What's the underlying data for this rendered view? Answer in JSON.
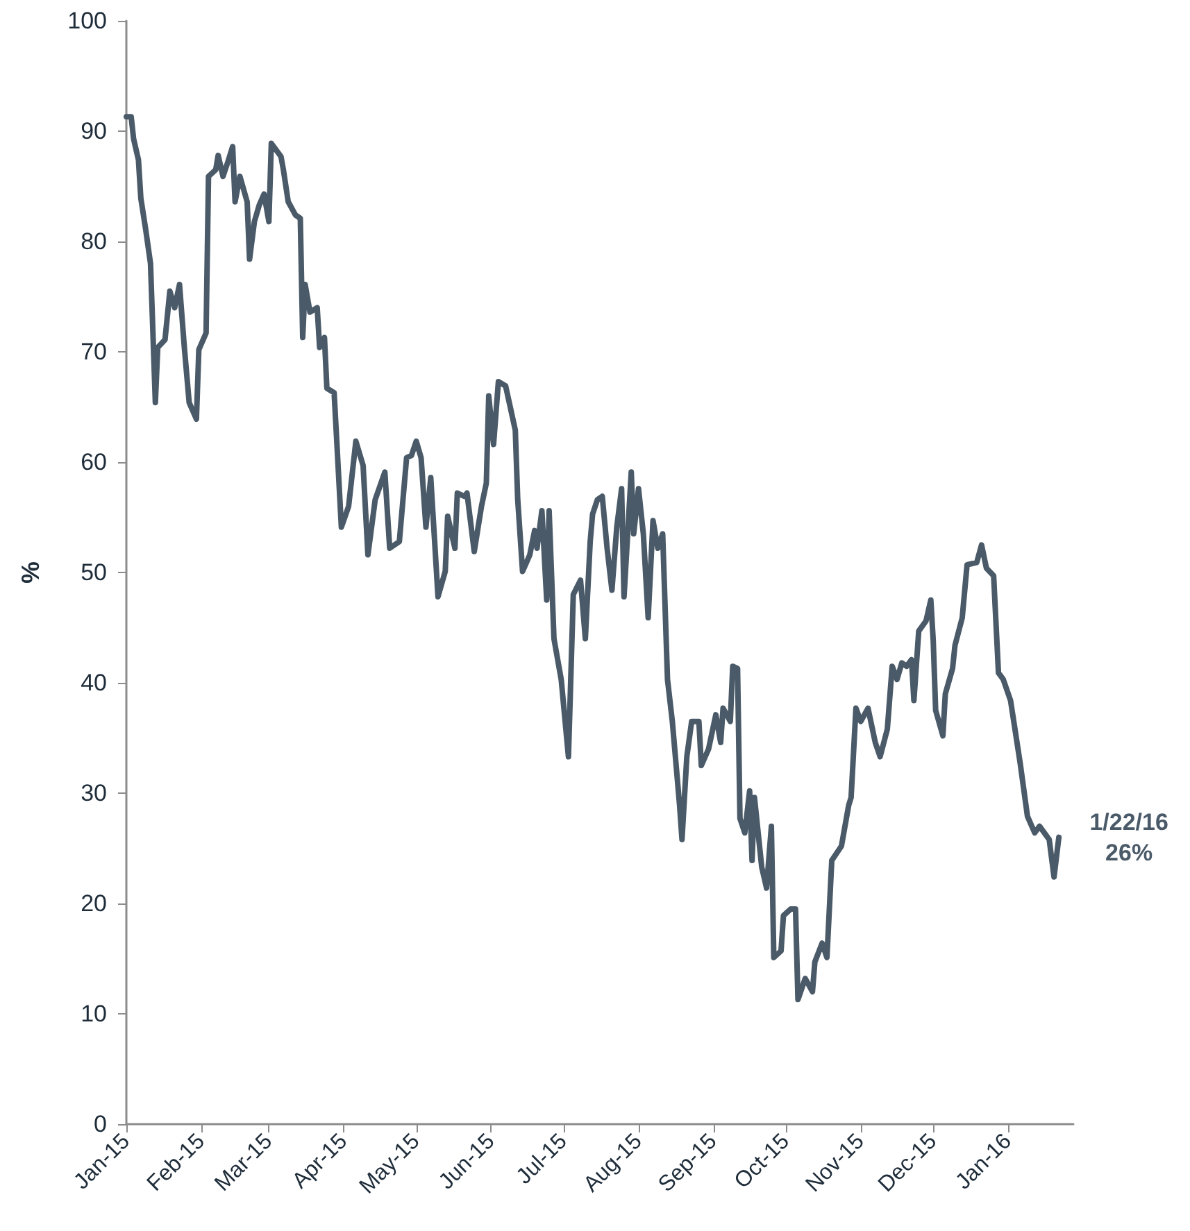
{
  "chart_data": {
    "type": "line",
    "ylabel": "%",
    "color": "#4a5a68",
    "line_style": "solid",
    "marker": "none",
    "xlim": [
      "2015-01-01",
      "2016-01-28"
    ],
    "ylim": [
      0,
      100
    ],
    "yticks": [
      0,
      10,
      20,
      30,
      40,
      50,
      60,
      70,
      80,
      90,
      100
    ],
    "xticks": [
      {
        "value": "2015-01-01",
        "label": "Jan-15"
      },
      {
        "value": "2015-02-01",
        "label": "Feb-15"
      },
      {
        "value": "2015-03-01",
        "label": "Mar-15"
      },
      {
        "value": "2015-04-01",
        "label": "Apr-15"
      },
      {
        "value": "2015-05-01",
        "label": "May-15"
      },
      {
        "value": "2015-06-01",
        "label": "Jun-15"
      },
      {
        "value": "2015-07-01",
        "label": "Jul-15"
      },
      {
        "value": "2015-08-01",
        "label": "Aug-15"
      },
      {
        "value": "2015-09-01",
        "label": "Sep-15"
      },
      {
        "value": "2015-10-01",
        "label": "Oct-15"
      },
      {
        "value": "2015-11-01",
        "label": "Nov-15"
      },
      {
        "value": "2015-12-01",
        "label": "Dec-15"
      },
      {
        "value": "2016-01-01",
        "label": "Jan-16"
      }
    ],
    "x": [
      "2015-01-01",
      "2015-01-03",
      "2015-01-04",
      "2015-01-06",
      "2015-01-07",
      "2015-01-09",
      "2015-01-11",
      "2015-01-13",
      "2015-01-14",
      "2015-01-17",
      "2015-01-19",
      "2015-01-21",
      "2015-01-23",
      "2015-01-25",
      "2015-01-27",
      "2015-01-30",
      "2015-01-31",
      "2015-02-03",
      "2015-02-04",
      "2015-02-07",
      "2015-02-08",
      "2015-02-10",
      "2015-02-12",
      "2015-02-14",
      "2015-02-15",
      "2015-02-17",
      "2015-02-20",
      "2015-02-21",
      "2015-02-23",
      "2015-02-25",
      "2015-02-27",
      "2015-03-01",
      "2015-03-02",
      "2015-03-06",
      "2015-03-07",
      "2015-03-09",
      "2015-03-12",
      "2015-03-14",
      "2015-03-15",
      "2015-03-16",
      "2015-03-18",
      "2015-03-21",
      "2015-03-22",
      "2015-03-24",
      "2015-03-25",
      "2015-03-28",
      "2015-03-29",
      "2015-03-31",
      "2015-04-03",
      "2015-04-06",
      "2015-04-09",
      "2015-04-11",
      "2015-04-14",
      "2015-04-18",
      "2015-04-20",
      "2015-04-24",
      "2015-04-27",
      "2015-04-29",
      "2015-05-01",
      "2015-05-03",
      "2015-05-05",
      "2015-05-07",
      "2015-05-10",
      "2015-05-13",
      "2015-05-14",
      "2015-05-17",
      "2015-05-18",
      "2015-05-21",
      "2015-05-22",
      "2015-05-25",
      "2015-05-28",
      "2015-05-30",
      "2015-05-31",
      "2015-06-02",
      "2015-06-04",
      "2015-06-07",
      "2015-06-11",
      "2015-06-12",
      "2015-06-14",
      "2015-06-17",
      "2015-06-19",
      "2015-06-20",
      "2015-06-22",
      "2015-06-24",
      "2015-06-25",
      "2015-06-27",
      "2015-06-30",
      "2015-07-03",
      "2015-07-05",
      "2015-07-08",
      "2015-07-10",
      "2015-07-12",
      "2015-07-13",
      "2015-07-15",
      "2015-07-17",
      "2015-07-19",
      "2015-07-21",
      "2015-07-23",
      "2015-07-25",
      "2015-07-26",
      "2015-07-29",
      "2015-07-30",
      "2015-08-01",
      "2015-08-03",
      "2015-08-05",
      "2015-08-07",
      "2015-08-09",
      "2015-08-11",
      "2015-08-13",
      "2015-08-15",
      "2015-08-18",
      "2015-08-19",
      "2015-08-21",
      "2015-08-23",
      "2015-08-26",
      "2015-08-27",
      "2015-08-30",
      "2015-09-02",
      "2015-09-04",
      "2015-09-05",
      "2015-09-08",
      "2015-09-09",
      "2015-09-11",
      "2015-09-12",
      "2015-09-14",
      "2015-09-16",
      "2015-09-17",
      "2015-09-18",
      "2015-09-21",
      "2015-09-23",
      "2015-09-25",
      "2015-09-26",
      "2015-09-29",
      "2015-09-30",
      "2015-10-03",
      "2015-10-05",
      "2015-10-06",
      "2015-10-09",
      "2015-10-12",
      "2015-10-13",
      "2015-10-16",
      "2015-10-18",
      "2015-10-20",
      "2015-10-24",
      "2015-10-27",
      "2015-10-28",
      "2015-10-30",
      "2015-11-01",
      "2015-11-04",
      "2015-11-07",
      "2015-11-09",
      "2015-11-12",
      "2015-11-14",
      "2015-11-16",
      "2015-11-18",
      "2015-11-20",
      "2015-11-22",
      "2015-11-23",
      "2015-11-25",
      "2015-11-28",
      "2015-11-30",
      "2015-12-01",
      "2015-12-02",
      "2015-12-05",
      "2015-12-06",
      "2015-12-09",
      "2015-12-10",
      "2015-12-13",
      "2015-12-15",
      "2015-12-19",
      "2015-12-21",
      "2015-12-23",
      "2015-12-26",
      "2015-12-28",
      "2015-12-30",
      "2016-01-02",
      "2016-01-06",
      "2016-01-09",
      "2016-01-12",
      "2016-01-14",
      "2016-01-18",
      "2016-01-20",
      "2016-01-22"
    ],
    "values": [
      91.3,
      91.3,
      89.3,
      87.4,
      83.9,
      81.1,
      78,
      65.4,
      70.4,
      71.1,
      75.5,
      74,
      76.1,
      70.4,
      65.4,
      63.9,
      70.2,
      71.7,
      85.9,
      86.5,
      87.8,
      85.9,
      87.2,
      88.6,
      83.6,
      85.9,
      83.6,
      78.4,
      81.8,
      83.3,
      84.3,
      81.8,
      88.9,
      87.7,
      86.5,
      83.6,
      82.4,
      82.1,
      71.3,
      76.1,
      73.6,
      74,
      70.4,
      71.3,
      66.7,
      66.3,
      62.3,
      54.1,
      56,
      61.9,
      59.7,
      51.6,
      56.6,
      59.1,
      52.2,
      52.8,
      60.4,
      60.6,
      61.9,
      60.4,
      54.1,
      58.6,
      47.8,
      50.1,
      55.1,
      52.2,
      57.2,
      56.9,
      57.2,
      51.9,
      56,
      58.1,
      66,
      61.6,
      67.3,
      66.9,
      62.9,
      56.6,
      50.1,
      51.6,
      53.8,
      52.2,
      55.6,
      47.5,
      55.6,
      44,
      40.3,
      33.3,
      48,
      49.3,
      44,
      52.8,
      55.3,
      56.6,
      56.9,
      52.2,
      48.4,
      54.1,
      57.6,
      47.8,
      59.1,
      53.5,
      57.6,
      53.5,
      45.9,
      54.7,
      52.2,
      53.5,
      40.3,
      36.5,
      28.9,
      25.8,
      33.3,
      36.5,
      36.5,
      32.5,
      34,
      37.1,
      34.6,
      37.7,
      36.5,
      41.5,
      41.3,
      27.7,
      26.4,
      30.2,
      23.9,
      29.6,
      23.3,
      21.4,
      27,
      15.1,
      15.7,
      18.9,
      19.5,
      19.5,
      11.3,
      13.2,
      12,
      14.7,
      16.4,
      15.1,
      23.9,
      25.2,
      28.9,
      29.6,
      37.7,
      36.5,
      37.7,
      34.6,
      33.3,
      35.8,
      41.5,
      40.3,
      41.8,
      41.5,
      42.1,
      38.4,
      44.7,
      45.6,
      47.5,
      43.8,
      37.5,
      35.2,
      39,
      41.3,
      43.4,
      45.9,
      50.7,
      50.9,
      52.5,
      50.4,
      49.7,
      40.9,
      40.3,
      38.4,
      32.7,
      27.9,
      26.4,
      27,
      25.8,
      22.4,
      26
    ],
    "annotations": [
      {
        "text": "1/22/16\n26%",
        "x": "2016-01-22",
        "y": 26
      }
    ]
  }
}
